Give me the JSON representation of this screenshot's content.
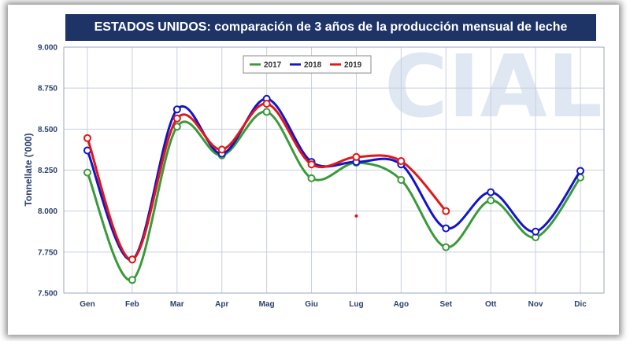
{
  "chart_data": {
    "type": "line",
    "title": "ESTADOS UNIDOS: comparación de 3 años de la producción mensual de leche",
    "ylabel": "Tonnellate ('000)",
    "xlabel": "",
    "categories": [
      "Gen",
      "Feb",
      "Mar",
      "Apr",
      "Mag",
      "Giu",
      "Lug",
      "Ago",
      "Set",
      "Ott",
      "Nov",
      "Dic"
    ],
    "ylim": [
      7500,
      9000
    ],
    "yticks": [
      "7.500",
      "7.750",
      "8.000",
      "8.250",
      "8.500",
      "8.750",
      "9.000"
    ],
    "ytick_values": [
      7500,
      7750,
      8000,
      8250,
      8500,
      8750,
      9000
    ],
    "grid": true,
    "legend_position": "top-center",
    "watermark": "CIAL",
    "series": [
      {
        "name": "2017",
        "color": "#3a9a3a",
        "values": [
          8235,
          7580,
          8515,
          8340,
          8605,
          8200,
          8295,
          8190,
          7780,
          8065,
          7840,
          8205
        ]
      },
      {
        "name": "2018",
        "color": "#1414c8",
        "values": [
          8370,
          7705,
          8620,
          8350,
          8685,
          8300,
          8300,
          8285,
          7895,
          8115,
          7875,
          8245
        ]
      },
      {
        "name": "2019",
        "color": "#e01818",
        "values": [
          8445,
          7705,
          8565,
          8375,
          8655,
          8285,
          8330,
          8305,
          8000,
          null,
          null,
          null
        ]
      }
    ],
    "annotations": [
      {
        "type": "stray-point",
        "x": 6,
        "y": 7970,
        "color": "#e01818"
      }
    ]
  }
}
